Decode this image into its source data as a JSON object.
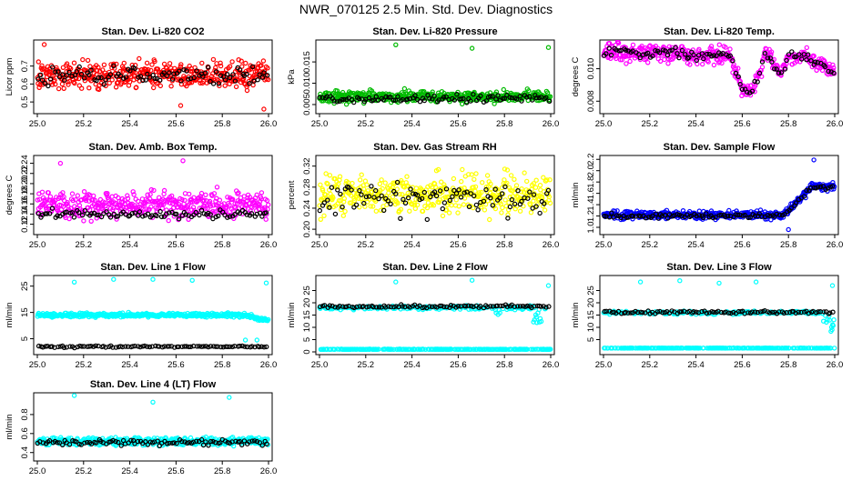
{
  "page_title": "NWR_070125  2.5 Min. Std. Dev. Diagnostics",
  "chart_data": [
    {
      "id": "p1",
      "type": "scatter",
      "title": "Stan. Dev. Li-820 CO2",
      "ylabel": "Licor ppm",
      "xlim": [
        25.0,
        26.0
      ],
      "ylim": [
        0.45,
        0.83
      ],
      "xticks": [
        25.0,
        25.2,
        25.4,
        25.6,
        25.8,
        26.0
      ],
      "xtick_labels": [
        "25.0",
        "25.2",
        "25.4",
        "25.6",
        "25.8",
        "26.0"
      ],
      "yticks": [
        0.5,
        0.6,
        0.7
      ],
      "ytick_labels": [
        "0.5",
        "0.6",
        "0.7"
      ],
      "series": [
        {
          "name": "main",
          "color": "#ff0000",
          "n": 430,
          "pattern": "noise",
          "base": 0.65,
          "spread": 0.07,
          "outliers": [
            [
              25.03,
              0.82
            ],
            [
              25.62,
              0.48
            ],
            [
              25.98,
              0.46
            ]
          ]
        },
        {
          "name": "black",
          "color": "#000000",
          "n": 95,
          "pattern": "noise",
          "base": 0.65,
          "spread": 0.05
        }
      ]
    },
    {
      "id": "p2",
      "type": "scatter",
      "title": "Stan. Dev. Li-820 Pressure",
      "ylabel": "kPa",
      "xlim": [
        25.0,
        26.0
      ],
      "ylim": [
        0.0035,
        0.0195
      ],
      "xticks": [
        25.0,
        25.2,
        25.4,
        25.6,
        25.8,
        26.0
      ],
      "xtick_labels": [
        "25.0",
        "25.2",
        "25.4",
        "25.6",
        "25.8",
        "26.0"
      ],
      "yticks": [
        0.005,
        0.01,
        0.015
      ],
      "ytick_labels": [
        "0.005",
        "0.010",
        "0.015"
      ],
      "series": [
        {
          "name": "main",
          "color": "#00bb00",
          "n": 430,
          "pattern": "noise",
          "base": 0.0068,
          "spread": 0.0013,
          "outliers": [
            [
              25.33,
              0.019
            ],
            [
              25.66,
              0.0182
            ],
            [
              25.99,
              0.0184
            ]
          ]
        },
        {
          "name": "black",
          "color": "#000000",
          "n": 95,
          "pattern": "noise",
          "base": 0.0064,
          "spread": 0.0008
        }
      ]
    },
    {
      "id": "p3",
      "type": "scatter",
      "title": "Stan. Dev. Li-820 Temp.",
      "ylabel": "degrees C",
      "xlim": [
        25.0,
        26.0
      ],
      "ylim": [
        0.0074,
        0.0116
      ],
      "xticks": [
        25.0,
        25.2,
        25.4,
        25.6,
        25.8,
        26.0
      ],
      "xtick_labels": [
        "25.0",
        "25.2",
        "25.4",
        "25.6",
        "25.8",
        "26.0"
      ],
      "yticks": [
        0.008,
        0.01
      ],
      "ytick_labels": [
        "0.008",
        "0.010"
      ],
      "series": [
        {
          "name": "main",
          "color": "#ff00ff",
          "n": 430,
          "pattern": "temp",
          "base": 0.0108,
          "spread": 0.0005
        },
        {
          "name": "black",
          "color": "#000000",
          "n": 95,
          "pattern": "temp",
          "base": 0.0108,
          "spread": 0.0003
        }
      ]
    },
    {
      "id": "p4",
      "type": "scatter",
      "title": "Stan. Dev. Amb. Box Temp.",
      "ylabel": "degrees C",
      "xlim": [
        25.0,
        26.0
      ],
      "ylim": [
        0.105,
        0.25
      ],
      "xticks": [
        25.0,
        25.2,
        25.4,
        25.6,
        25.8,
        26.0
      ],
      "xtick_labels": [
        "25.0",
        "25.2",
        "25.4",
        "25.6",
        "25.8",
        "26.0"
      ],
      "yticks": [
        0.12,
        0.14,
        0.16,
        0.18,
        0.2,
        0.22,
        0.24
      ],
      "ytick_labels": [
        "0.12",
        "0.14",
        "0.16",
        "0.18",
        "0.20",
        "0.22",
        "0.24"
      ],
      "series": [
        {
          "name": "main",
          "color": "#ff00ff",
          "n": 430,
          "pattern": "noise",
          "base": 0.158,
          "spread": 0.025,
          "outliers": [
            [
              25.1,
              0.24
            ],
            [
              25.63,
              0.245
            ]
          ]
        },
        {
          "name": "black",
          "color": "#000000",
          "n": 95,
          "pattern": "noise",
          "base": 0.14,
          "spread": 0.008
        }
      ]
    },
    {
      "id": "p5",
      "type": "scatter",
      "title": "Stan. Dev. Gas Stream RH",
      "ylabel": "percent",
      "xlim": [
        25.0,
        26.0
      ],
      "ylim": [
        0.195,
        0.335
      ],
      "xticks": [
        25.0,
        25.2,
        25.4,
        25.6,
        25.8,
        26.0
      ],
      "xtick_labels": [
        "25.0",
        "25.2",
        "25.4",
        "25.6",
        "25.8",
        "26.0"
      ],
      "yticks": [
        0.2,
        0.24,
        0.28,
        0.32
      ],
      "ytick_labels": [
        "0.20",
        "0.24",
        "0.28",
        "0.32"
      ],
      "series": [
        {
          "name": "main",
          "color": "#ffff00",
          "n": 430,
          "pattern": "noise",
          "base": 0.265,
          "spread": 0.035
        },
        {
          "name": "black",
          "color": "#000000",
          "n": 95,
          "pattern": "noise",
          "base": 0.26,
          "spread": 0.03
        }
      ]
    },
    {
      "id": "p6",
      "type": "scatter",
      "title": "Stan. Dev. Sample Flow",
      "ylabel": "ml/min",
      "xlim": [
        25.0,
        26.0
      ],
      "ylim": [
        0.92,
        2.22
      ],
      "xticks": [
        25.0,
        25.2,
        25.4,
        25.6,
        25.8,
        26.0
      ],
      "xtick_labels": [
        "25.0",
        "25.2",
        "25.4",
        "25.6",
        "25.8",
        "26.0"
      ],
      "yticks": [
        1.0,
        1.2,
        1.4,
        1.6,
        1.8,
        2.0,
        2.2
      ],
      "ytick_labels": [
        "1.0",
        "1.2",
        "1.4",
        "1.6",
        "1.8",
        "2.0",
        "2.2"
      ],
      "series": [
        {
          "name": "main",
          "color": "#0000ff",
          "n": 430,
          "pattern": "flow",
          "base": 1.22,
          "spread": 0.07,
          "outliers": [
            [
              25.91,
              2.19
            ],
            [
              25.8,
              0.96
            ]
          ]
        },
        {
          "name": "black",
          "color": "#000000",
          "n": 95,
          "pattern": "flow",
          "base": 1.2,
          "spread": 0.04
        }
      ]
    },
    {
      "id": "p7",
      "type": "scatter",
      "title": "Stan. Dev. Line 1 Flow",
      "ylabel": "ml/min",
      "xlim": [
        25.0,
        26.0
      ],
      "ylim": [
        0,
        28
      ],
      "xticks": [
        25.0,
        25.2,
        25.4,
        25.6,
        25.8,
        26.0
      ],
      "xtick_labels": [
        "25.0",
        "25.2",
        "25.4",
        "25.6",
        "25.8",
        "26.0"
      ],
      "yticks": [
        5,
        15,
        25
      ],
      "ytick_labels": [
        "5",
        "15",
        "25"
      ],
      "series": [
        {
          "name": "main",
          "color": "#00ffff",
          "n": 430,
          "pattern": "line1",
          "base": 14,
          "spread": 0.7,
          "outliers": [
            [
              25.16,
              26.5
            ],
            [
              25.33,
              27.6
            ],
            [
              25.5,
              27.6
            ],
            [
              25.67,
              27.2
            ],
            [
              25.99,
              26.2
            ],
            [
              25.9,
              4.5
            ],
            [
              25.95,
              4.5
            ]
          ]
        },
        {
          "name": "black",
          "color": "#000000",
          "n": 95,
          "pattern": "flat",
          "base": 2.0,
          "spread": 0.3
        }
      ]
    },
    {
      "id": "p8",
      "type": "scatter",
      "title": "Stan. Dev. Line 2 Flow",
      "ylabel": "ml/min",
      "xlim": [
        25.0,
        26.0
      ],
      "ylim": [
        0,
        30
      ],
      "xticks": [
        25.0,
        25.2,
        25.4,
        25.6,
        25.8,
        26.0
      ],
      "xtick_labels": [
        "25.0",
        "25.2",
        "25.4",
        "25.6",
        "25.8",
        "26.0"
      ],
      "yticks": [
        0,
        5,
        10,
        15,
        20,
        25
      ],
      "ytick_labels": [
        "0",
        "5",
        "10",
        "15",
        "20",
        "25"
      ],
      "series": [
        {
          "name": "main",
          "color": "#00ffff",
          "n": 430,
          "pattern": "line2",
          "base": 18,
          "spread": 0.8,
          "outliers": [
            [
              25.33,
              28.5
            ],
            [
              25.66,
              29.2
            ],
            [
              25.99,
              27
            ]
          ]
        },
        {
          "name": "black",
          "color": "#000000",
          "n": 95,
          "pattern": "flat",
          "base": 18.5,
          "spread": 0.5
        }
      ]
    },
    {
      "id": "p9",
      "type": "scatter",
      "title": "Stan. Dev. Line 3 Flow",
      "ylabel": "ml/min",
      "xlim": [
        25.0,
        26.0
      ],
      "ylim": [
        0,
        30
      ],
      "xticks": [
        25.0,
        25.2,
        25.4,
        25.6,
        25.8,
        26.0
      ],
      "xtick_labels": [
        "25.0",
        "25.2",
        "25.4",
        "25.6",
        "25.8",
        "26.0"
      ],
      "yticks": [
        5,
        10,
        15,
        20,
        25
      ],
      "ytick_labels": [
        "5",
        "10",
        "15",
        "20",
        "25"
      ],
      "series": [
        {
          "name": "main",
          "color": "#00ffff",
          "n": 430,
          "pattern": "line3",
          "base": 16,
          "spread": 0.6,
          "outliers": [
            [
              25.16,
              28.5
            ],
            [
              25.33,
              29
            ],
            [
              25.5,
              28
            ],
            [
              25.66,
              28.5
            ],
            [
              25.99,
              27
            ]
          ]
        },
        {
          "name": "black",
          "color": "#000000",
          "n": 95,
          "pattern": "flat",
          "base": 16.2,
          "spread": 0.5
        }
      ]
    },
    {
      "id": "p10",
      "type": "scatter",
      "title": "Stan. Dev. Line 4 (LT) Flow",
      "ylabel": "ml/min",
      "xlim": [
        25.0,
        26.0
      ],
      "ylim": [
        0.34,
        1.0
      ],
      "xticks": [
        25.0,
        25.2,
        25.4,
        25.6,
        25.8,
        26.0
      ],
      "xtick_labels": [
        "25.0",
        "25.2",
        "25.4",
        "25.6",
        "25.8",
        "26.0"
      ],
      "yticks": [
        0.4,
        0.6,
        0.8
      ],
      "ytick_labels": [
        "0.4",
        "0.6",
        "0.8"
      ],
      "series": [
        {
          "name": "main",
          "color": "#00ffff",
          "n": 430,
          "pattern": "noise",
          "base": 0.52,
          "spread": 0.04,
          "outliers": [
            [
              25.16,
              1.0
            ],
            [
              25.5,
              0.93
            ],
            [
              25.83,
              0.98
            ]
          ]
        },
        {
          "name": "black",
          "color": "#000000",
          "n": 95,
          "pattern": "noise",
          "base": 0.51,
          "spread": 0.03
        }
      ]
    }
  ]
}
